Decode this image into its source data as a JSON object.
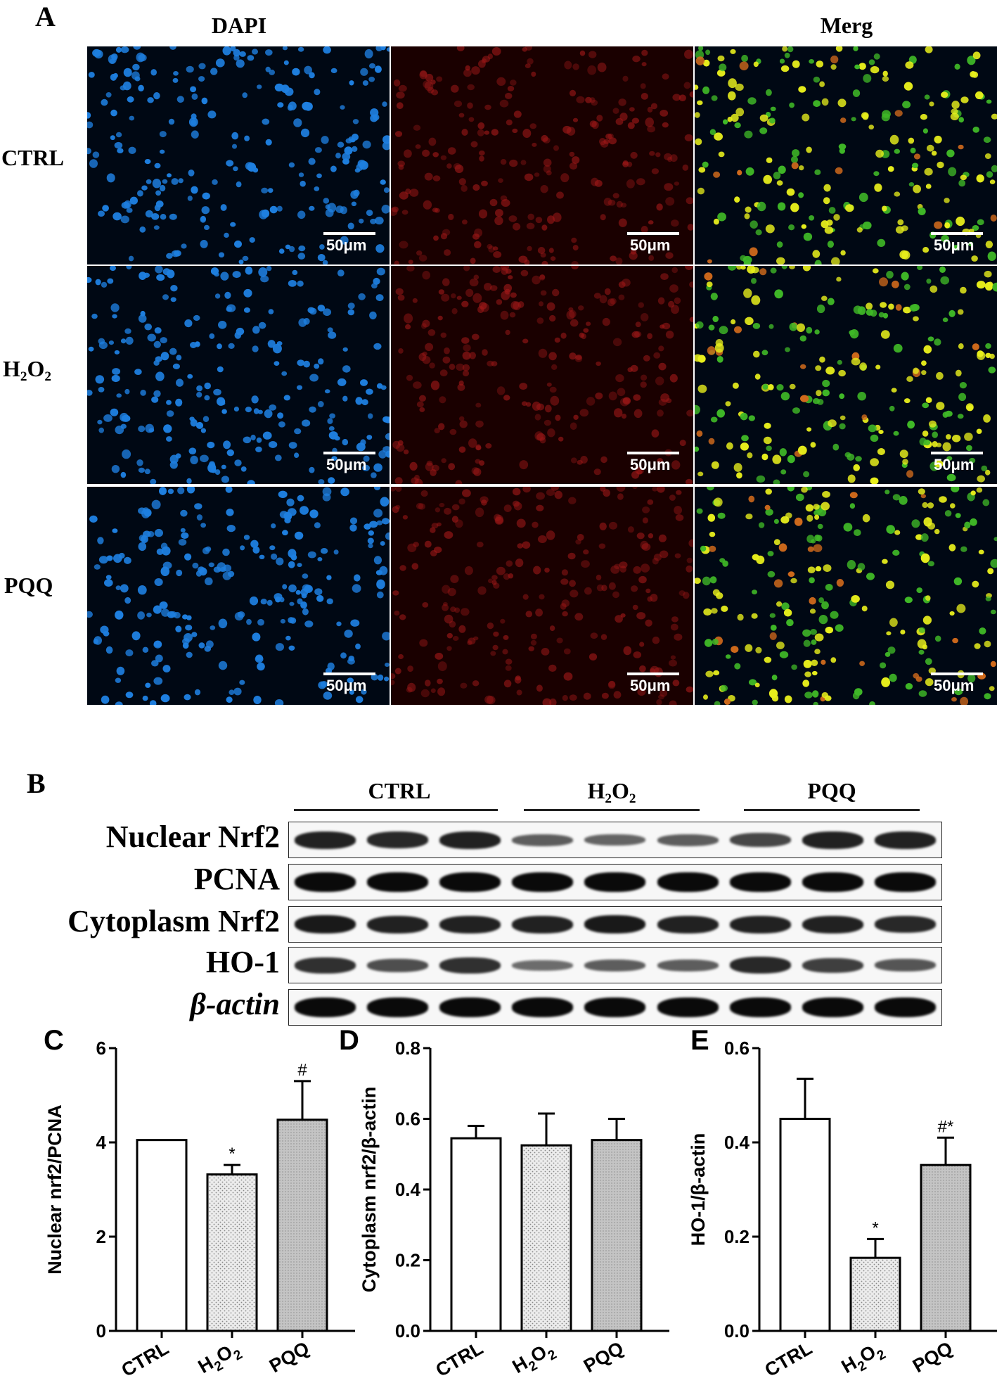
{
  "panel_a": {
    "letter": "A",
    "columns": [
      "DAPI",
      "",
      "Merg"
    ],
    "rows": [
      {
        "name": "CTRL",
        "kind": "plain"
      },
      {
        "name": "H2O2",
        "kind": "chem",
        "main": "H",
        "sub1": "2",
        "mid": "O",
        "sub2": "2"
      },
      {
        "name": "PQQ",
        "kind": "plain"
      }
    ],
    "scale_label": "50μm",
    "channel_colors": [
      "#1e7fe0",
      "#a01818",
      "#cfe34a"
    ]
  },
  "panel_b": {
    "letter": "B",
    "groups": [
      "CTRL",
      "H2O2",
      "PQQ"
    ],
    "group_h2o2": {
      "main": "H",
      "sub1": "2",
      "mid": "O",
      "sub2": "2"
    },
    "rows": [
      {
        "label": "Nuclear Nrf2",
        "intensity": [
          0.85,
          0.8,
          0.85,
          0.45,
          0.4,
          0.45,
          0.6,
          0.85,
          0.85
        ]
      },
      {
        "label": "PCNA",
        "intensity": [
          1,
          1,
          1,
          1,
          1,
          1,
          1,
          1,
          1
        ]
      },
      {
        "label": "Cytoplasm Nrf2",
        "intensity": [
          0.9,
          0.85,
          0.85,
          0.85,
          0.9,
          0.85,
          0.85,
          0.85,
          0.8
        ]
      },
      {
        "label": "HO-1",
        "intensity": [
          0.75,
          0.55,
          0.75,
          0.35,
          0.45,
          0.45,
          0.8,
          0.65,
          0.5
        ]
      },
      {
        "label": "β-actin",
        "intensity": [
          1,
          1,
          1,
          1,
          1,
          1,
          1,
          1,
          1
        ]
      }
    ]
  },
  "chart_data": [
    {
      "panel": "C",
      "type": "bar",
      "categories": [
        "CTRL",
        "H2O2",
        "PQQ"
      ],
      "values": [
        4.05,
        3.32,
        4.48
      ],
      "errors": [
        0.0,
        0.2,
        0.82
      ],
      "annotations": [
        "",
        "*",
        "#"
      ],
      "ylabel": "Nuclear nrf2/PCNA",
      "ylim": [
        0,
        6
      ],
      "yticks": [
        "0",
        "2",
        "4",
        "6"
      ],
      "fills": [
        "white",
        "dots",
        "gray"
      ]
    },
    {
      "panel": "D",
      "type": "bar",
      "categories": [
        "CTRL",
        "H2O2",
        "PQQ"
      ],
      "values": [
        0.545,
        0.525,
        0.54
      ],
      "errors": [
        0.035,
        0.09,
        0.06
      ],
      "annotations": [
        "",
        "",
        ""
      ],
      "ylabel": "Cytoplasm nrf2/β-actin",
      "ylim": [
        0,
        0.8
      ],
      "yticks": [
        "0.0",
        "0.2",
        "0.4",
        "0.6",
        "0.8"
      ],
      "fills": [
        "white",
        "dots",
        "gray"
      ]
    },
    {
      "panel": "E",
      "type": "bar",
      "categories": [
        "CTRL",
        "H2O2",
        "PQQ"
      ],
      "values": [
        0.45,
        0.155,
        0.352
      ],
      "errors": [
        0.085,
        0.04,
        0.058
      ],
      "annotations": [
        "",
        "*",
        "#*"
      ],
      "ylabel": "HO-1/β-actin",
      "ylim": [
        0,
        0.6
      ],
      "yticks": [
        "0.0",
        "0.2",
        "0.4",
        "0.6"
      ],
      "fills": [
        "white",
        "dots",
        "gray"
      ]
    }
  ]
}
